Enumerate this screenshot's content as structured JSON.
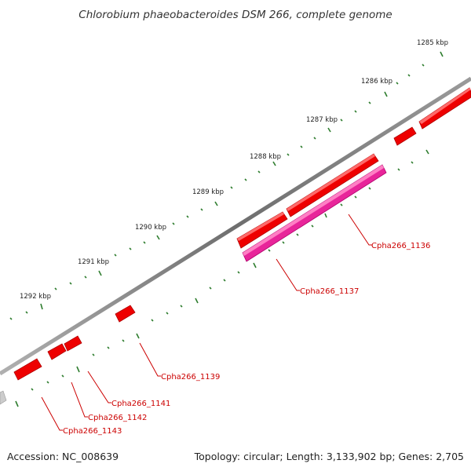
{
  "title": "Chlorobium phaeobacteroides DSM 266, complete genome",
  "footer": {
    "accession": "Accession: NC_008639",
    "summary": "Topology: circular; Length: 3,133,902 bp; Genes: 2,705"
  },
  "colors": {
    "backbone": "#7a7a7a",
    "tick": "#2f7d2f",
    "gene_forward": "#ee0000",
    "gene_reverse": "#e8259a",
    "gene_label": "#cc0000"
  },
  "kbp_labels": [
    "1285 kbp",
    "1286 kbp",
    "1287 kbp",
    "1288 kbp",
    "1289 kbp",
    "1290 kbp",
    "1291 kbp",
    "1292 kbp"
  ],
  "gene_labels": [
    "Cpha266_1136",
    "Cpha266_1137",
    "Cpha266_1139",
    "Cpha266_1141",
    "Cpha266_1142",
    "Cpha266_1143"
  ]
}
